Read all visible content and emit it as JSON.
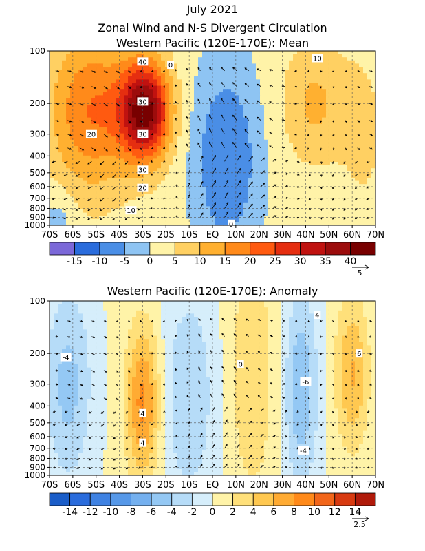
{
  "figure": {
    "title_line1": "July 2021",
    "title_line2": "Zonal Wind and N-S Divergent Circulation"
  },
  "chart_data": [
    {
      "type": "heatmap",
      "title": "Western Pacific (120E-170E): Mean",
      "x_tick_labels": [
        "70S",
        "60S",
        "50S",
        "40S",
        "30S",
        "20S",
        "10S",
        "EQ",
        "10N",
        "20N",
        "30N",
        "40N",
        "50N",
        "60N",
        "70N"
      ],
      "y_tick_labels": [
        "100",
        "200",
        "300",
        "400",
        "500",
        "600",
        "700",
        "800",
        "900",
        "1000"
      ],
      "y_levels": [
        100,
        200,
        300,
        400,
        500,
        600,
        700,
        800,
        900,
        1000
      ],
      "y_scale": "log",
      "colorbar": {
        "tick_labels": [
          "-15",
          "-10",
          "-5",
          "0",
          "5",
          "10",
          "15",
          "20",
          "25",
          "30",
          "35",
          "40"
        ],
        "boundaries": [
          -20,
          -15,
          -10,
          -5,
          0,
          5,
          10,
          15,
          20,
          25,
          30,
          35,
          40,
          45
        ],
        "colors": [
          "#7b68d8",
          "#2a6cdc",
          "#4a8ee6",
          "#8ec4f3",
          "#fff3a8",
          "#ffd062",
          "#ffb030",
          "#ff8a1a",
          "#ff5a10",
          "#e52e10",
          "#c01210",
          "#9c0c0c",
          "#780000"
        ]
      },
      "contour_labels": [
        "40",
        "30",
        "30",
        "30",
        "20",
        "20",
        "10",
        "0",
        "10",
        "0"
      ],
      "vector_reference": "5"
    },
    {
      "type": "heatmap",
      "title": "Western Pacific (120E-170E): Anomaly",
      "x_tick_labels": [
        "70S",
        "60S",
        "50S",
        "40S",
        "30S",
        "20S",
        "10S",
        "EQ",
        "10N",
        "20N",
        "30N",
        "40N",
        "50N",
        "60N",
        "70N"
      ],
      "y_tick_labels": [
        "100",
        "200",
        "300",
        "400",
        "500",
        "600",
        "700",
        "800",
        "900",
        "1000"
      ],
      "y_levels": [
        100,
        200,
        300,
        400,
        500,
        600,
        700,
        800,
        900,
        1000
      ],
      "y_scale": "log",
      "colorbar": {
        "tick_labels": [
          "-14",
          "-12",
          "-10",
          "-8",
          "-6",
          "-4",
          "-2",
          "0",
          "2",
          "4",
          "6",
          "8",
          "10",
          "12",
          "14"
        ],
        "boundaries": [
          -16,
          -14,
          -12,
          -10,
          -8,
          -6,
          -4,
          -2,
          0,
          2,
          4,
          6,
          8,
          10,
          12,
          14,
          16
        ],
        "colors": [
          "#1a5dc8",
          "#2a6cdc",
          "#3f82e2",
          "#5698e8",
          "#74b0ef",
          "#94c8f4",
          "#b6dcf8",
          "#d6eefb",
          "#fff3a8",
          "#ffe07a",
          "#ffc850",
          "#ffab33",
          "#ff8a1a",
          "#f2661a",
          "#d83a10",
          "#b01a0a"
        ]
      },
      "contour_labels": [
        "-4",
        "0",
        "4",
        "-6",
        "-4",
        "4",
        "6",
        "4"
      ],
      "vector_reference": "2.5"
    }
  ]
}
